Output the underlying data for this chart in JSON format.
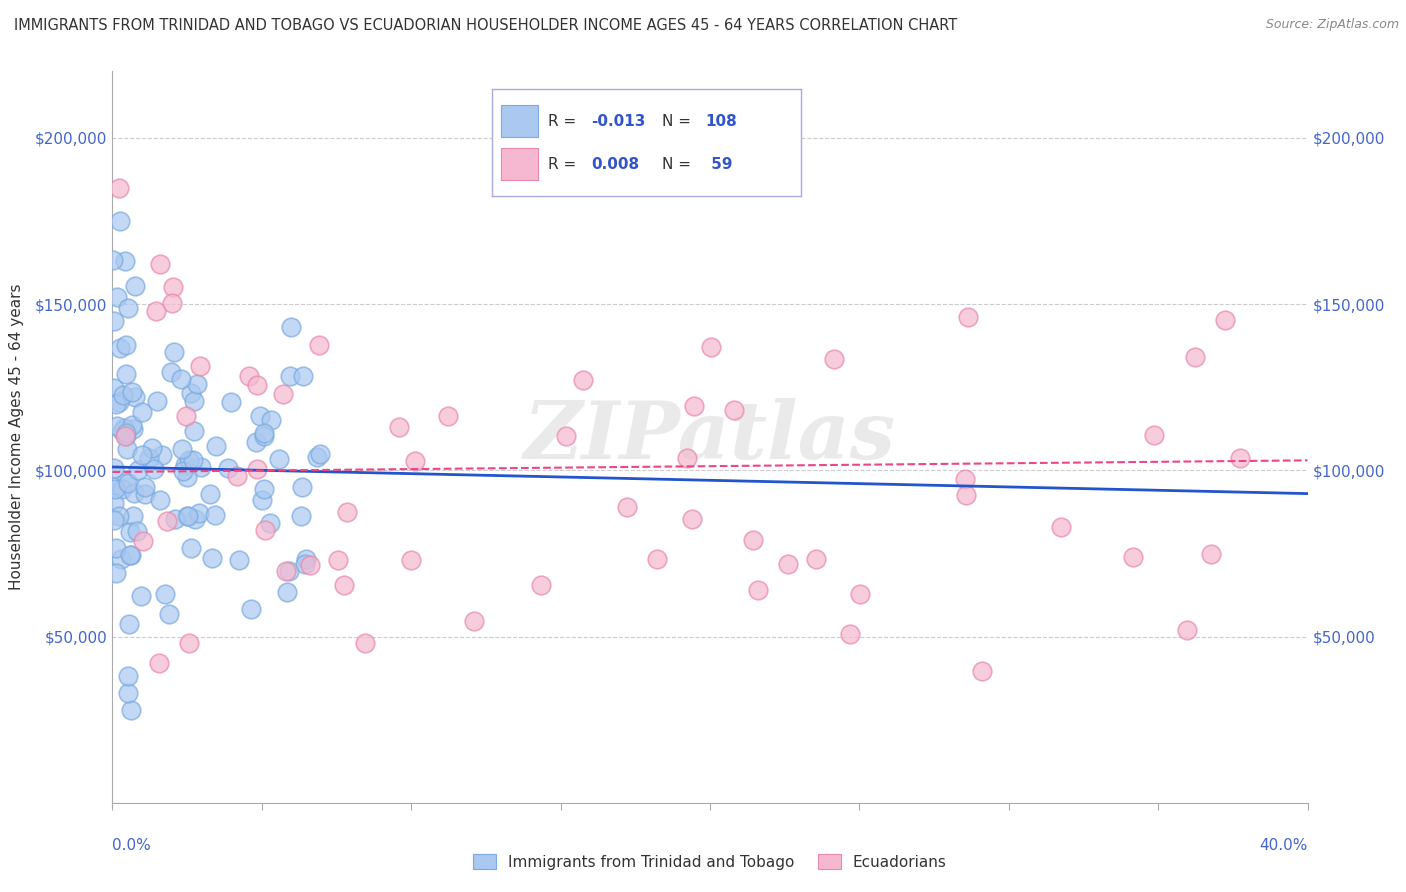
{
  "title": "IMMIGRANTS FROM TRINIDAD AND TOBAGO VS ECUADORIAN HOUSEHOLDER INCOME AGES 45 - 64 YEARS CORRELATION CHART",
  "source": "Source: ZipAtlas.com",
  "ylabel": "Householder Income Ages 45 - 64 years",
  "xlim": [
    0.0,
    40.0
  ],
  "ylim": [
    0,
    220000
  ],
  "yticks": [
    0,
    50000,
    100000,
    150000,
    200000
  ],
  "color_tt": "#aac8f0",
  "color_tt_edge": "#7aaae0",
  "color_ec": "#f5b8d0",
  "color_ec_edge": "#e888aa",
  "trend_tt_color": "#2255cc",
  "trend_ec_color": "#ee4488",
  "label_tt": "Immigrants from Trinidad and Tobago",
  "label_ec": "Ecuadorians",
  "background_color": "#ffffff",
  "watermark": "ZIPatlas",
  "legend_r1_text": "R = ",
  "legend_r1_val": "-0.013",
  "legend_n1_text": "N = ",
  "legend_n1_val": "108",
  "legend_r2_text": "R = ",
  "legend_r2_val": "0.008",
  "legend_n2_text": "N = ",
  "legend_n2_val": " 59"
}
